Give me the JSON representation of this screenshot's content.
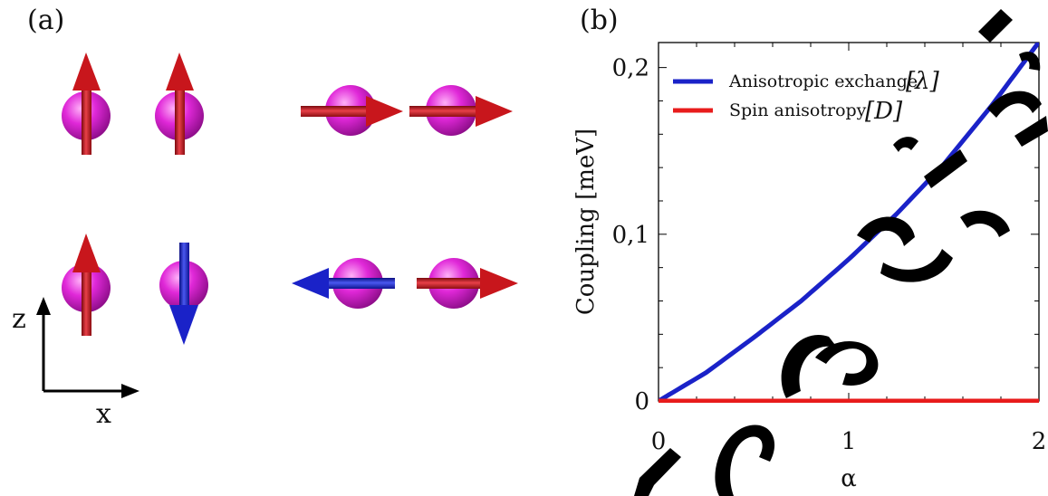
{
  "panel_a": {
    "label": "(a)",
    "axes": {
      "vertical": "z",
      "horizontal": "x"
    },
    "colors": {
      "sphere": "#e028d8",
      "arrow_up_right": "#c8161c",
      "arrow_flipped": "#1a22c8"
    },
    "configurations": [
      {
        "row": "top",
        "direction": "z",
        "spins": [
          "up",
          "up"
        ]
      },
      {
        "row": "top",
        "direction": "x",
        "spins": [
          "right",
          "right"
        ]
      },
      {
        "row": "bottom",
        "direction": "z",
        "spins": [
          "up",
          "down"
        ]
      },
      {
        "row": "bottom",
        "direction": "x",
        "spins": [
          "left",
          "right"
        ]
      }
    ]
  },
  "panel_b": {
    "label": "(b)",
    "ylabel": "Coupling [meV]",
    "xlabel": "α",
    "xticks": [
      "0",
      "1",
      "2"
    ],
    "yticks": [
      "0",
      "0,1",
      "0,2"
    ],
    "legend": [
      {
        "text": "Anisotropic exchange",
        "symbol": "λ",
        "color": "#1a22c8"
      },
      {
        "text": "Spin anisotropy",
        "symbol": "D",
        "color": "#e81c1c"
      }
    ]
  },
  "chart_data": {
    "type": "line",
    "title": "",
    "xlabel": "α",
    "ylabel": "Coupling [meV]",
    "xlim": [
      0,
      2
    ],
    "ylim": [
      0,
      0.215
    ],
    "grid": false,
    "legend_position": "top-left",
    "series": [
      {
        "name": "Anisotropic exchange [λ]",
        "color": "#1a22c8",
        "x": [
          0,
          0.25,
          0.5,
          0.75,
          1.0,
          1.25,
          1.5,
          1.75,
          1.9
        ],
        "y": [
          0,
          0.017,
          0.038,
          0.06,
          0.085,
          0.112,
          0.142,
          0.177,
          0.2
        ]
      },
      {
        "name": "Spin anisotropy [D]",
        "color": "#e81c1c",
        "x": [
          0,
          2
        ],
        "y": [
          0,
          0
        ]
      }
    ]
  }
}
